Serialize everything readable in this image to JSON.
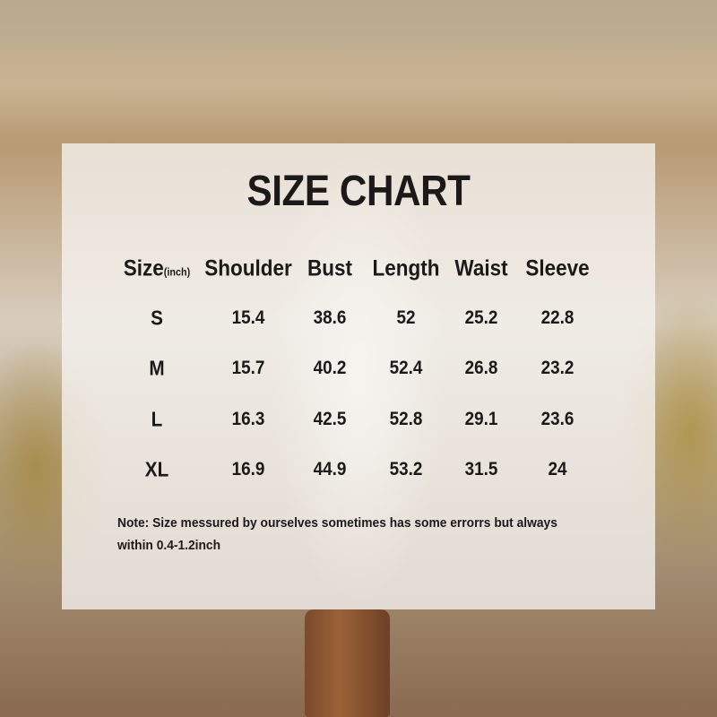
{
  "title": "SIZE CHART",
  "table": {
    "size_label": "Size",
    "unit": "(inch)",
    "headers": [
      "Shoulder",
      "Bust",
      "Length",
      "Waist",
      "Sleeve"
    ],
    "rows": [
      {
        "size": "S",
        "values": [
          "15.4",
          "38.6",
          "52",
          "25.2",
          "22.8"
        ]
      },
      {
        "size": "M",
        "values": [
          "15.7",
          "40.2",
          "52.4",
          "26.8",
          "23.2"
        ]
      },
      {
        "size": "L",
        "values": [
          "16.3",
          "42.5",
          "52.8",
          "29.1",
          "23.6"
        ]
      },
      {
        "size": "XL",
        "values": [
          "16.9",
          "44.9",
          "53.2",
          "31.5",
          "24"
        ]
      }
    ]
  },
  "note": "Note:  Size messured by ourselves sometimes has some errorrs but always within 0.4-1.2inch"
}
